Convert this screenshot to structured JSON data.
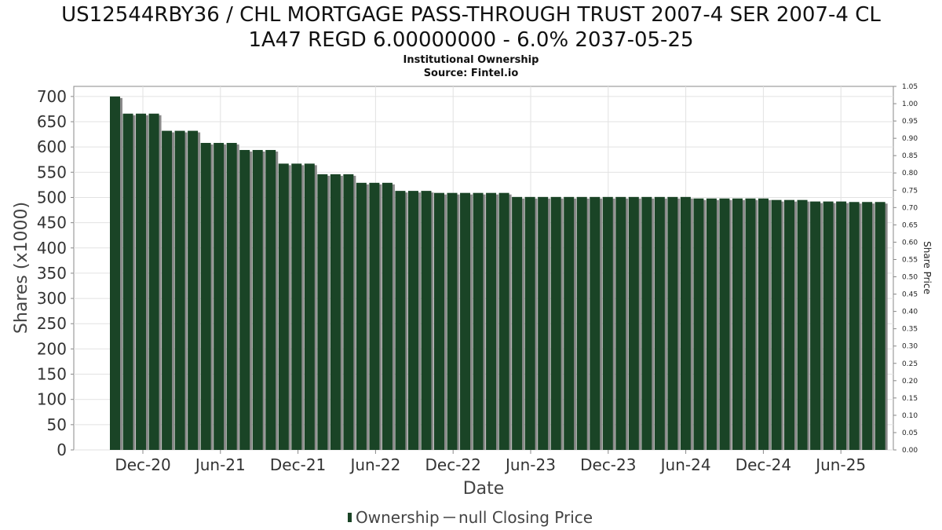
{
  "colors": {
    "bar_fill": "#1a4426",
    "bar_shadow": "#8a8a8a",
    "grid": "#e2e2e2",
    "axis": "#888888",
    "text": "#333333"
  },
  "chart_data": {
    "type": "bar",
    "title_line1": "US12544RBY36 / CHL MORTGAGE PASS-THROUGH TRUST 2007-4 SER 2007-4 CL",
    "title_line2": "1A47 REGD 6.00000000 - 6.0% 2037-05-25",
    "subtitle_line1": "Institutional Ownership",
    "subtitle_line2": "Source: Fintel.io",
    "xlabel": "Date",
    "ylabel": "Shares (x1000)",
    "y2label": "Share Price",
    "ylim": [
      0,
      720
    ],
    "y_ticks": [
      0,
      50,
      100,
      150,
      200,
      250,
      300,
      350,
      400,
      450,
      500,
      550,
      600,
      650,
      700
    ],
    "y2lim": [
      0,
      1.05
    ],
    "y2_ticks": [
      "0.00",
      "0.05",
      "0.10",
      "0.15",
      "0.20",
      "0.25",
      "0.30",
      "0.35",
      "0.40",
      "0.45",
      "0.50",
      "0.55",
      "0.60",
      "0.65",
      "0.70",
      "0.75",
      "0.80",
      "0.85",
      "0.90",
      "0.95",
      "1.00",
      "1.05"
    ],
    "x_tick_labels": [
      "Dec-20",
      "Jun-21",
      "Dec-21",
      "Jun-22",
      "Dec-22",
      "Jun-23",
      "Dec-23",
      "Jun-24",
      "Dec-24",
      "Jun-25"
    ],
    "grid": true,
    "legend_position": "bottom",
    "legend": [
      "Ownership",
      "null Closing Price"
    ],
    "series": [
      {
        "name": "Ownership",
        "values": [
          700,
          666,
          666,
          666,
          632,
          632,
          632,
          608,
          608,
          608,
          594,
          594,
          594,
          567,
          567,
          567,
          546,
          546,
          546,
          529,
          529,
          529,
          513,
          513,
          513,
          509,
          509,
          509,
          509,
          509,
          509,
          501,
          501,
          501,
          501,
          501,
          501,
          501,
          501,
          501,
          501,
          501,
          501,
          501,
          501,
          498,
          498,
          498,
          498,
          498,
          498,
          495,
          495,
          495,
          492,
          492,
          492,
          491,
          491,
          491
        ]
      }
    ]
  }
}
